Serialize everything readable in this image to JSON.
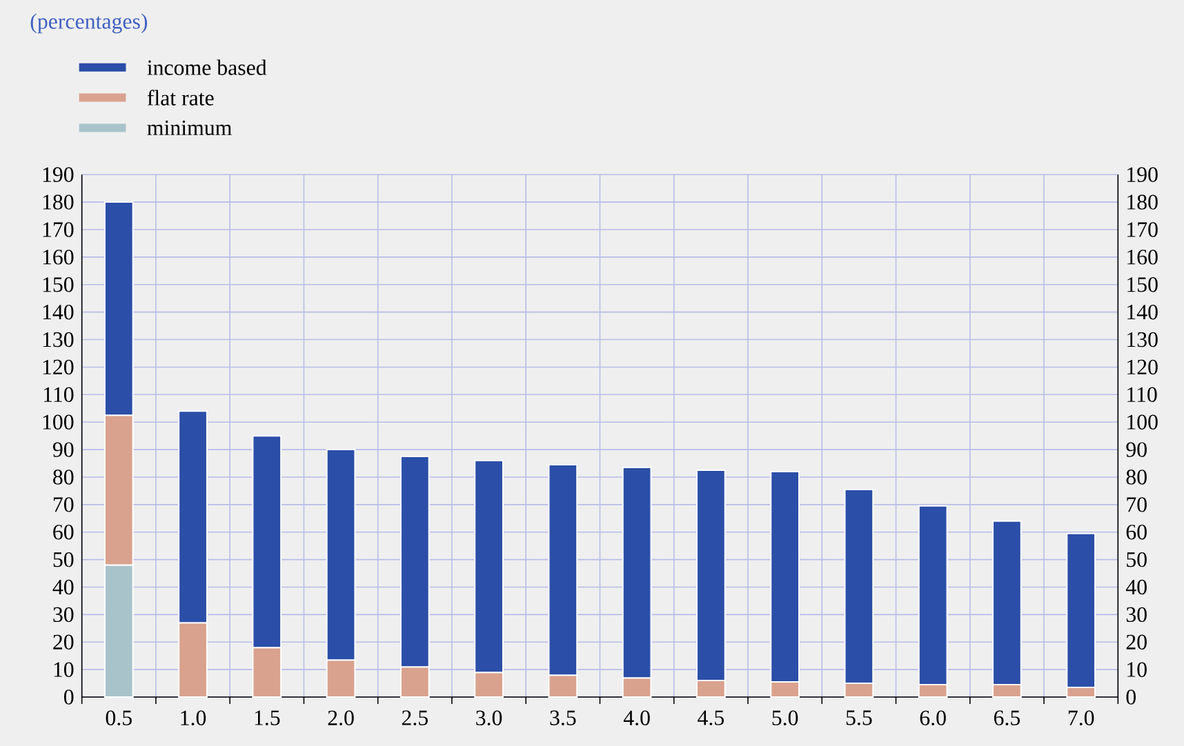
{
  "chart_data": {
    "type": "bar",
    "stacked": true,
    "title": "(percentages)",
    "categories": [
      "0.5",
      "1.0",
      "1.5",
      "2.0",
      "2.5",
      "3.0",
      "3.5",
      "4.0",
      "4.5",
      "5.0",
      "5.5",
      "6.0",
      "6.5",
      "7.0"
    ],
    "series": [
      {
        "name": "minimum",
        "color": "#a9c3cb",
        "values": [
          48,
          null,
          null,
          null,
          null,
          null,
          null,
          null,
          null,
          null,
          null,
          null,
          null,
          null
        ]
      },
      {
        "name": "flat rate",
        "color": "#d9a28e",
        "values": [
          54.5,
          27,
          18,
          13.5,
          11,
          9,
          8,
          7,
          6,
          5.5,
          5,
          4.5,
          4.5,
          3.5
        ]
      },
      {
        "name": "income based",
        "color": "#2b4ea8",
        "values": [
          77.5,
          77,
          77,
          76.5,
          76.5,
          77,
          76.5,
          76.5,
          76.5,
          76.5,
          70.5,
          65,
          59.5,
          56
        ]
      }
    ],
    "ylim": [
      0,
      190
    ],
    "yticks": [
      0,
      10,
      20,
      30,
      40,
      50,
      60,
      70,
      80,
      90,
      100,
      110,
      120,
      130,
      140,
      150,
      160,
      170,
      180,
      190
    ],
    "y2lim": [
      0,
      190
    ],
    "y2ticks": [
      0,
      10,
      20,
      30,
      40,
      50,
      60,
      70,
      80,
      90,
      100,
      110,
      120,
      130,
      140,
      150,
      160,
      170,
      180,
      190
    ],
    "grid": true,
    "legend": "top left"
  }
}
